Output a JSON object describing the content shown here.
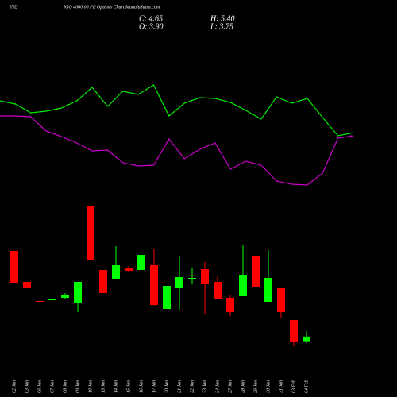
{
  "chart_data": {
    "type": "candlestick",
    "title_left": "IND",
    "title": "IGO 4000.00 PE Options  Chart MunafaSutra.com",
    "ohlc_labels": {
      "close": "C: 4.65",
      "high": "H: 5.40",
      "open": "O: 3.90",
      "low": "L: 3.75"
    },
    "categories": [
      "02 Jan",
      "03 Jan",
      "06 Jan",
      "07 Jan",
      "08 Jan",
      "09 Jan",
      "10 Jan",
      "13 Jan",
      "14 Jan",
      "15 Jan",
      "16 Jan",
      "17 Jan",
      "20 Jan",
      "21 Jan",
      "22 Jan",
      "23 Jan",
      "24 Jan",
      "27 Jan",
      "28 Jan",
      "29 Jan",
      "30 Jan",
      "31 Jan",
      "03 Feb",
      "04 Feb"
    ],
    "open": [
      16.51,
      12.22,
      9.58,
      9.69,
      10.02,
      9.36,
      22.67,
      13.87,
      12.66,
      14.2,
      13.87,
      14.53,
      8.48,
      11.34,
      12.66,
      13.98,
      12.22,
      10.02,
      10.24,
      15.85,
      9.47,
      11.34,
      6.94,
      3.9
    ],
    "high": [
      16.51,
      12.22,
      9.6,
      9.8,
      10.68,
      12.22,
      22.67,
      13.87,
      17.17,
      14.42,
      15.96,
      16.73,
      11.67,
      15.85,
      14.09,
      14.97,
      12.99,
      10.46,
      17.28,
      15.85,
      16.62,
      11.34,
      6.94,
      5.4
    ],
    "low": [
      12.11,
      11.34,
      9.4,
      9.69,
      9.8,
      8.04,
      15.3,
      10.68,
      12.66,
      13.54,
      13.87,
      8.81,
      8.48,
      8.37,
      11.89,
      7.82,
      9.91,
      7.49,
      10.24,
      11.45,
      9.47,
      7.16,
      3.31,
      3.75
    ],
    "close": [
      12.11,
      11.34,
      9.47,
      9.8,
      10.46,
      12.22,
      15.3,
      10.68,
      14.53,
      13.76,
      15.96,
      9.03,
      11.67,
      12.88,
      12.77,
      11.89,
      9.91,
      8.04,
      13.21,
      11.45,
      12.77,
      8.04,
      3.86,
      4.65
    ],
    "up_color": "#00ff00",
    "down_color": "#ff0000",
    "ylim": [
      -3.73,
      51.27
    ],
    "lines": [
      {
        "color": "#00ee00",
        "values": [
          173,
          169,
          158,
          160,
          164,
          173,
          190,
          166,
          185,
          181,
          193,
          154,
          170,
          177,
          176,
          171,
          161,
          150,
          178,
          170,
          176,
          152,
          129,
          133
        ]
      },
      {
        "color": "#cc00cc",
        "values": [
          154,
          154,
          153,
          135,
          128,
          120,
          110,
          111,
          95,
          91,
          92,
          125,
          100,
          112,
          120,
          87,
          97,
          92,
          72,
          68,
          67,
          82,
          126,
          129
        ]
      }
    ],
    "lines_ylim": [
      0,
      300
    ]
  }
}
